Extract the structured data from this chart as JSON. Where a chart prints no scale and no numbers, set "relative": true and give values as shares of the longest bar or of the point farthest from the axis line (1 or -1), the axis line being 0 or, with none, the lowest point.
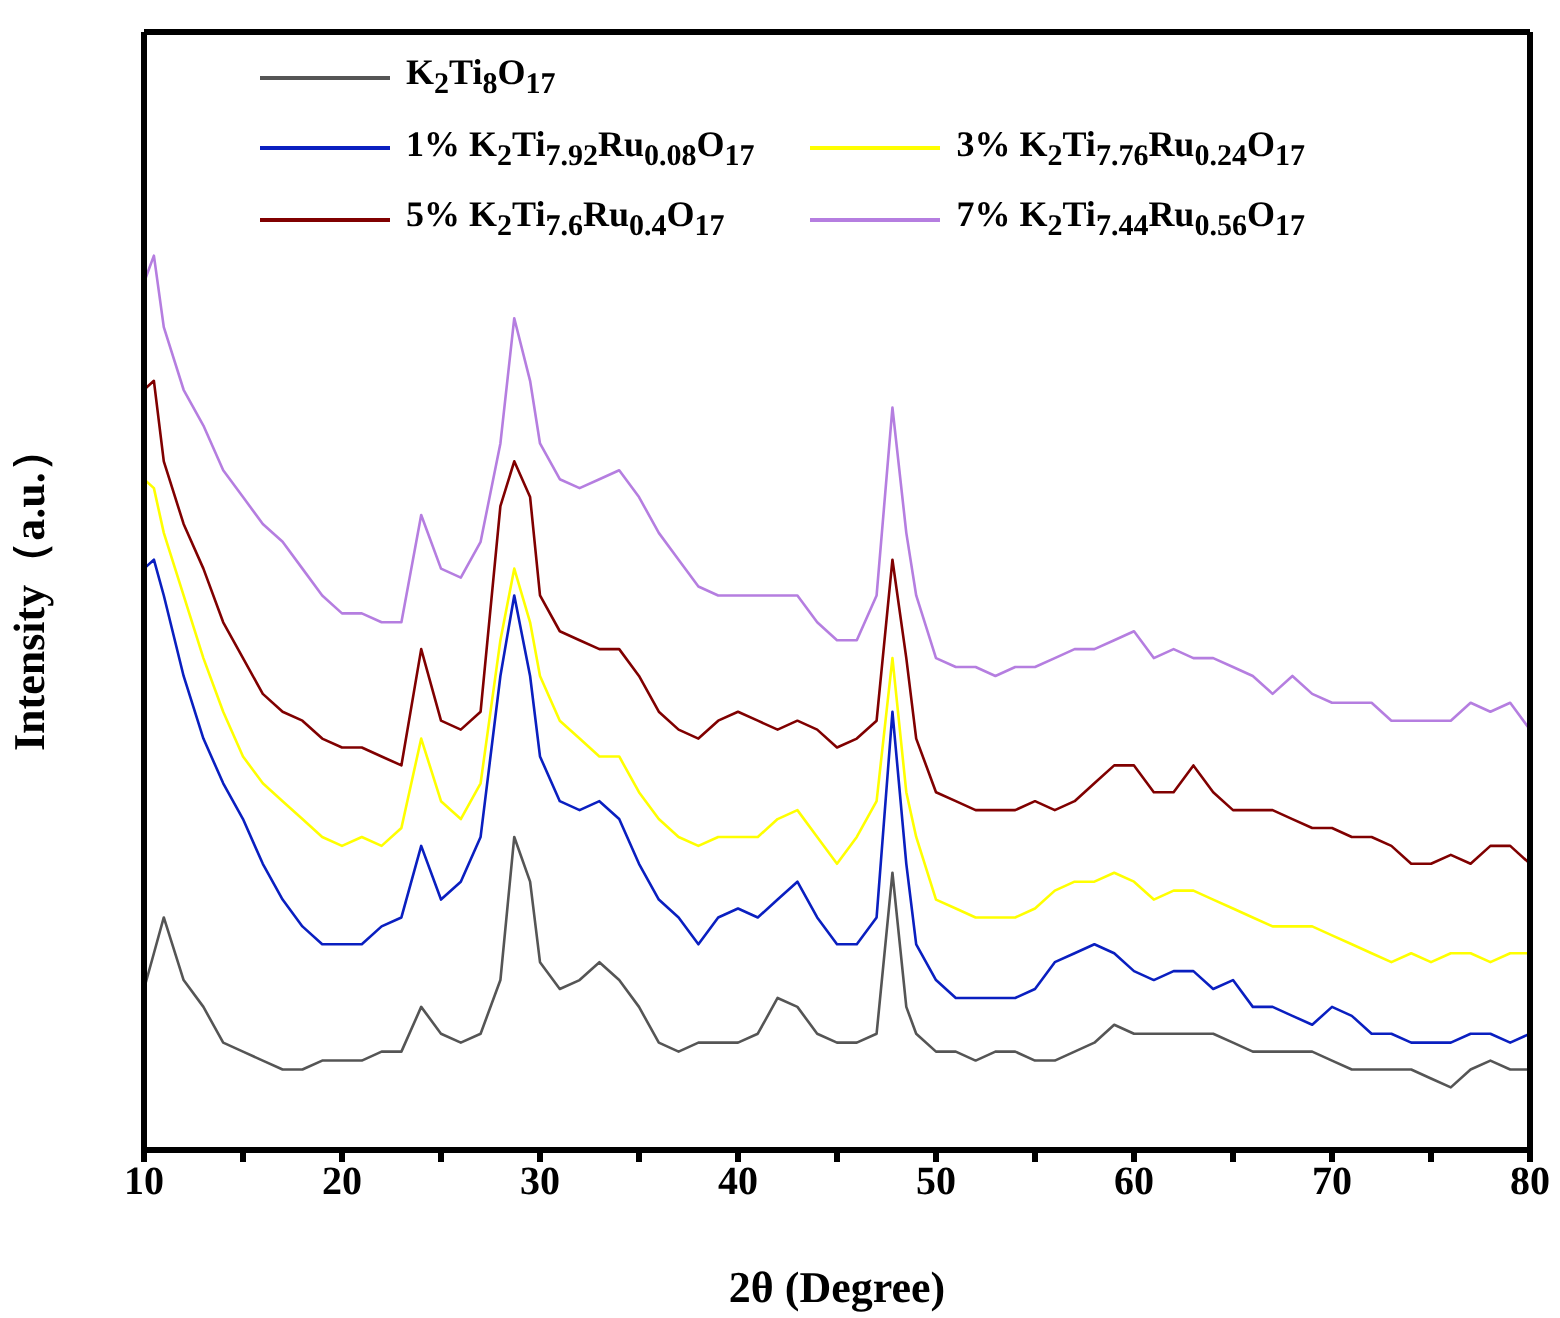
{
  "chart_data": {
    "type": "line",
    "relative": true,
    "xlabel": "2θ (Degree)",
    "ylabel": "Intensity（a.u.）",
    "legend": "top",
    "marker": "none",
    "line_style": "solid",
    "xlim": [
      10,
      80
    ],
    "xticks": [
      10,
      {
        "value": 15,
        "label": null
      },
      20,
      {
        "value": 25,
        "label": null
      },
      30,
      {
        "value": 35,
        "label": null
      },
      40,
      {
        "value": 45,
        "label": null
      },
      50,
      {
        "value": 55,
        "label": null
      },
      60,
      {
        "value": 65,
        "label": null
      },
      70,
      {
        "value": 75,
        "label": null
      },
      80
    ],
    "x": [
      10,
      10.5,
      11,
      12,
      13,
      14,
      15,
      16,
      17,
      18,
      19,
      20,
      21,
      22,
      23,
      24,
      25,
      26,
      27,
      28,
      28.7,
      29.5,
      30,
      31,
      32,
      33,
      34,
      35,
      36,
      37,
      38,
      39,
      40,
      41,
      42,
      43,
      44,
      45,
      46,
      47,
      47.8,
      48.5,
      49,
      50,
      51,
      52,
      53,
      54,
      55,
      56,
      57,
      58,
      59,
      60,
      61,
      62,
      63,
      64,
      65,
      66,
      67,
      68,
      69,
      70,
      71,
      72,
      73,
      74,
      75,
      76,
      77,
      78,
      79,
      80
    ],
    "series": [
      {
        "name": "K$_{2}$Ti$_{8}$O$_{17}$",
        "color": "#555555",
        "values": [
          0.18,
          0.22,
          0.26,
          0.19,
          0.16,
          0.12,
          0.11,
          0.1,
          0.09,
          0.09,
          0.1,
          0.1,
          0.1,
          0.11,
          0.11,
          0.16,
          0.13,
          0.12,
          0.13,
          0.19,
          0.35,
          0.3,
          0.21,
          0.18,
          0.19,
          0.21,
          0.19,
          0.16,
          0.12,
          0.11,
          0.12,
          0.12,
          0.12,
          0.13,
          0.17,
          0.16,
          0.13,
          0.12,
          0.12,
          0.13,
          0.31,
          0.16,
          0.13,
          0.11,
          0.11,
          0.1,
          0.11,
          0.11,
          0.1,
          0.1,
          0.11,
          0.12,
          0.14,
          0.13,
          0.13,
          0.13,
          0.13,
          0.13,
          0.12,
          0.11,
          0.11,
          0.11,
          0.11,
          0.1,
          0.09,
          0.09,
          0.09,
          0.09,
          0.08,
          0.07,
          0.09,
          0.1,
          0.09,
          0.09
        ]
      },
      {
        "name": "1% K$_{2}$Ti$_{7.92}$Ru$_{0.08}$O$_{17}$",
        "color": "#0a1fc0",
        "values": [
          0.65,
          0.66,
          0.62,
          0.53,
          0.46,
          0.41,
          0.37,
          0.32,
          0.28,
          0.25,
          0.23,
          0.23,
          0.23,
          0.25,
          0.26,
          0.34,
          0.28,
          0.3,
          0.35,
          0.53,
          0.62,
          0.53,
          0.44,
          0.39,
          0.38,
          0.39,
          0.37,
          0.32,
          0.28,
          0.26,
          0.23,
          0.26,
          0.27,
          0.26,
          0.28,
          0.3,
          0.26,
          0.23,
          0.23,
          0.26,
          0.49,
          0.32,
          0.23,
          0.19,
          0.17,
          0.17,
          0.17,
          0.17,
          0.18,
          0.21,
          0.22,
          0.23,
          0.22,
          0.2,
          0.19,
          0.2,
          0.2,
          0.18,
          0.19,
          0.16,
          0.16,
          0.15,
          0.14,
          0.16,
          0.15,
          0.13,
          0.13,
          0.12,
          0.12,
          0.12,
          0.13,
          0.13,
          0.12,
          0.13
        ]
      },
      {
        "name": "3% K$_{2}$Ti$_{7.76}$Ru$_{0.24}$O$_{17}$",
        "color": "#ffff00",
        "values": [
          0.75,
          0.74,
          0.69,
          0.62,
          0.55,
          0.49,
          0.44,
          0.41,
          0.39,
          0.37,
          0.35,
          0.34,
          0.35,
          0.34,
          0.36,
          0.46,
          0.39,
          0.37,
          0.41,
          0.57,
          0.65,
          0.59,
          0.53,
          0.48,
          0.46,
          0.44,
          0.44,
          0.4,
          0.37,
          0.35,
          0.34,
          0.35,
          0.35,
          0.35,
          0.37,
          0.38,
          0.35,
          0.32,
          0.35,
          0.39,
          0.55,
          0.4,
          0.35,
          0.28,
          0.27,
          0.26,
          0.26,
          0.26,
          0.27,
          0.29,
          0.3,
          0.3,
          0.31,
          0.3,
          0.28,
          0.29,
          0.29,
          0.28,
          0.27,
          0.26,
          0.25,
          0.25,
          0.25,
          0.24,
          0.23,
          0.22,
          0.21,
          0.22,
          0.21,
          0.22,
          0.22,
          0.21,
          0.22,
          0.22
        ]
      },
      {
        "name": "5% K$_{2}$Ti$_{7.6}$Ru$_{0.4}$O$_{17}$",
        "color": "#800000",
        "values": [
          0.85,
          0.86,
          0.77,
          0.7,
          0.65,
          0.59,
          0.55,
          0.51,
          0.49,
          0.48,
          0.46,
          0.45,
          0.45,
          0.44,
          0.43,
          0.56,
          0.48,
          0.47,
          0.49,
          0.72,
          0.77,
          0.73,
          0.62,
          0.58,
          0.57,
          0.56,
          0.56,
          0.53,
          0.49,
          0.47,
          0.46,
          0.48,
          0.49,
          0.48,
          0.47,
          0.48,
          0.47,
          0.45,
          0.46,
          0.48,
          0.66,
          0.55,
          0.46,
          0.4,
          0.39,
          0.38,
          0.38,
          0.38,
          0.39,
          0.38,
          0.39,
          0.41,
          0.43,
          0.43,
          0.4,
          0.4,
          0.43,
          0.4,
          0.38,
          0.38,
          0.38,
          0.37,
          0.36,
          0.36,
          0.35,
          0.35,
          0.34,
          0.32,
          0.32,
          0.33,
          0.32,
          0.34,
          0.34,
          0.32
        ]
      },
      {
        "name": "7% K$_{2}$Ti$_{7.44}$Ru$_{0.56}$O$_{17}$",
        "color": "#b57ee0",
        "values": [
          0.97,
          1,
          0.92,
          0.85,
          0.81,
          0.76,
          0.73,
          0.7,
          0.68,
          0.65,
          0.62,
          0.6,
          0.6,
          0.59,
          0.59,
          0.71,
          0.65,
          0.64,
          0.68,
          0.79,
          0.93,
          0.86,
          0.79,
          0.75,
          0.74,
          0.75,
          0.76,
          0.73,
          0.69,
          0.66,
          0.63,
          0.62,
          0.62,
          0.62,
          0.62,
          0.62,
          0.59,
          0.57,
          0.57,
          0.62,
          0.83,
          0.69,
          0.62,
          0.55,
          0.54,
          0.54,
          0.53,
          0.54,
          0.54,
          0.55,
          0.56,
          0.56,
          0.57,
          0.58,
          0.55,
          0.56,
          0.55,
          0.55,
          0.54,
          0.53,
          0.51,
          0.53,
          0.51,
          0.5,
          0.5,
          0.5,
          0.48,
          0.48,
          0.48,
          0.48,
          0.5,
          0.49,
          0.5,
          0.47
        ]
      }
    ]
  }
}
